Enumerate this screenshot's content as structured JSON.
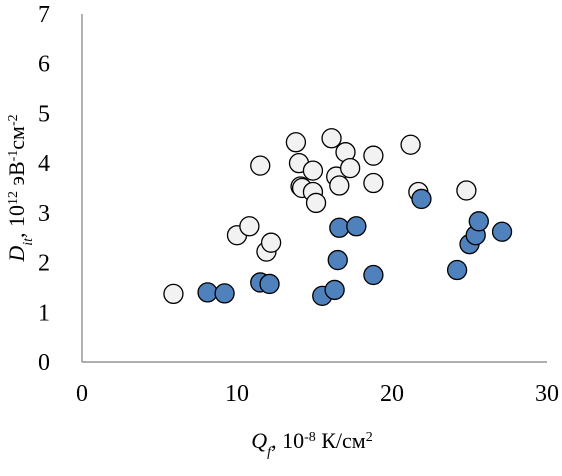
{
  "chart_data": {
    "type": "scatter",
    "xlim": [
      0,
      30
    ],
    "ylim": [
      0,
      7
    ],
    "x_ticks": [
      "0",
      "10",
      "20",
      "30"
    ],
    "y_ticks": [
      "0",
      "1",
      "2",
      "3",
      "4",
      "5",
      "6",
      "7"
    ],
    "xlabel": {
      "symbol": "Q",
      "subscript": "f",
      "text": ", 10",
      "power": "-8",
      "unit": " К/см",
      "unit_power": "2"
    },
    "ylabel": {
      "symbol": "D",
      "subscript": "it",
      "text": ", 10",
      "power": "12",
      "unit": " эВ",
      "unit_power": "-1",
      "unit2": "см",
      "unit2_power": "-2"
    },
    "grid": false,
    "legend": "none",
    "series": [
      {
        "color": "#f2f2f2",
        "points": [
          {
            "x": 5.9,
            "y": 1.37
          },
          {
            "x": 10.0,
            "y": 2.55
          },
          {
            "x": 10.8,
            "y": 2.73
          },
          {
            "x": 11.5,
            "y": 3.95
          },
          {
            "x": 11.9,
            "y": 2.22
          },
          {
            "x": 12.2,
            "y": 2.4
          },
          {
            "x": 13.8,
            "y": 4.42
          },
          {
            "x": 14.0,
            "y": 4.0
          },
          {
            "x": 14.1,
            "y": 3.53
          },
          {
            "x": 14.2,
            "y": 3.5
          },
          {
            "x": 14.9,
            "y": 3.85
          },
          {
            "x": 14.9,
            "y": 3.42
          },
          {
            "x": 15.1,
            "y": 3.2
          },
          {
            "x": 16.1,
            "y": 4.5
          },
          {
            "x": 16.4,
            "y": 3.73
          },
          {
            "x": 16.6,
            "y": 3.55
          },
          {
            "x": 17.0,
            "y": 4.22
          },
          {
            "x": 17.3,
            "y": 3.9
          },
          {
            "x": 18.8,
            "y": 4.15
          },
          {
            "x": 18.8,
            "y": 3.6
          },
          {
            "x": 21.2,
            "y": 4.37
          },
          {
            "x": 21.7,
            "y": 3.42
          },
          {
            "x": 24.8,
            "y": 3.45
          }
        ]
      },
      {
        "color": "#4f81bd",
        "points": [
          {
            "x": 8.1,
            "y": 1.4
          },
          {
            "x": 9.2,
            "y": 1.38
          },
          {
            "x": 11.5,
            "y": 1.6
          },
          {
            "x": 12.1,
            "y": 1.57
          },
          {
            "x": 15.5,
            "y": 1.33
          },
          {
            "x": 16.3,
            "y": 1.45
          },
          {
            "x": 16.5,
            "y": 2.05
          },
          {
            "x": 16.6,
            "y": 2.7
          },
          {
            "x": 17.7,
            "y": 2.73
          },
          {
            "x": 18.8,
            "y": 1.75
          },
          {
            "x": 21.9,
            "y": 3.28
          },
          {
            "x": 24.2,
            "y": 1.85
          },
          {
            "x": 25.0,
            "y": 2.37
          },
          {
            "x": 25.4,
            "y": 2.55
          },
          {
            "x": 25.6,
            "y": 2.83
          },
          {
            "x": 27.1,
            "y": 2.62
          }
        ]
      }
    ]
  }
}
